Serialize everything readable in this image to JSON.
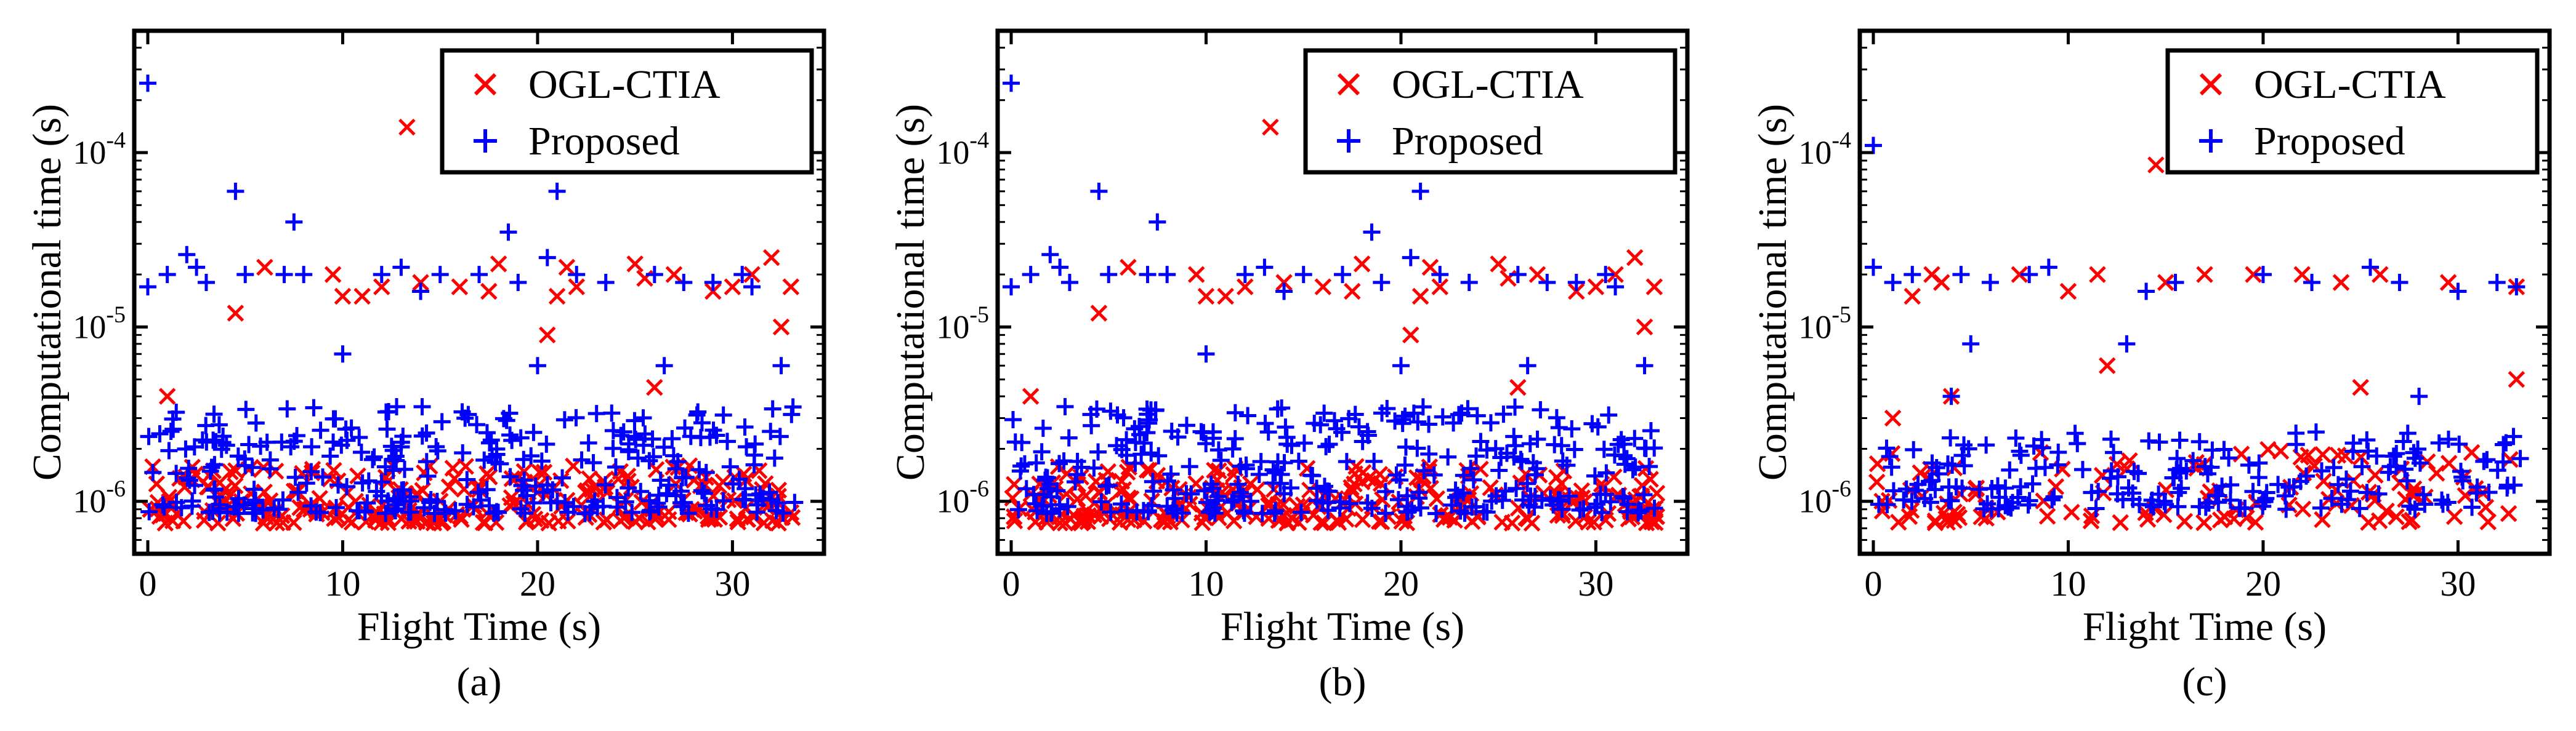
{
  "colors": {
    "ogl": "#ff0000",
    "proposed": "#0000ff",
    "axis": "#000000"
  },
  "chart_data": [
    {
      "type": "scatter",
      "panel_label": "(a)",
      "xlabel": "Flight Time (s)",
      "ylabel": "Computational time (s)",
      "xlim": [
        0,
        34
      ],
      "ylim": [
        5e-07,
        0.0005
      ],
      "yscale": "log",
      "xticks": [
        "0",
        "10",
        "20",
        "30"
      ],
      "yticks": [
        "10-6",
        "10-5",
        "10-4"
      ],
      "legend": {
        "placement": "top-right",
        "entries": [
          "OGL-CTIA",
          "Proposed"
        ]
      },
      "series": [
        {
          "name": "OGL-CTIA",
          "marker": "x",
          "outliers": [
            [
              13.3,
              0.00014
            ],
            [
              32,
              2.5e-05
            ],
            [
              18,
              2.3e-05
            ],
            [
              21.5,
              2.2e-05
            ],
            [
              25,
              2.3e-05
            ],
            [
              6,
              2.2e-05
            ],
            [
              9.5,
              2e-05
            ],
            [
              10,
              1.5e-05
            ],
            [
              11,
              1.5e-05
            ],
            [
              14,
              1.8e-05
            ],
            [
              4.5,
              1.2e-05
            ],
            [
              16,
              1.7e-05
            ],
            [
              17.5,
              1.6e-05
            ],
            [
              20.5,
              9e-06
            ],
            [
              30,
              1.7e-05
            ],
            [
              32.5,
              1e-05
            ],
            [
              33,
              1.7e-05
            ],
            [
              25.5,
              1.9e-05
            ],
            [
              21,
              1.5e-05
            ],
            [
              22,
              1.7e-05
            ],
            [
              12,
              1.7e-05
            ],
            [
              27,
              2e-05
            ],
            [
              29,
              1.6e-05
            ],
            [
              31,
              2e-05
            ],
            [
              1,
              4e-06
            ],
            [
              26,
              4.5e-06
            ]
          ],
          "band": {
            "low": 7.5e-07,
            "high": 1.6e-06,
            "density": 260
          }
        },
        {
          "name": "Proposed",
          "marker": "+",
          "outliers": [
            [
              0,
              0.00025
            ],
            [
              4.5,
              6e-05
            ],
            [
              7.5,
              4e-05
            ],
            [
              18.5,
              3.5e-05
            ],
            [
              21,
              6e-05
            ],
            [
              2,
              2.6e-05
            ],
            [
              0,
              1.7e-05
            ],
            [
              1,
              2e-05
            ],
            [
              2.5,
              2.2e-05
            ],
            [
              3,
              1.8e-05
            ],
            [
              5,
              2e-05
            ],
            [
              7,
              2e-05
            ],
            [
              8,
              2e-05
            ],
            [
              12,
              2e-05
            ],
            [
              13,
              2.2e-05
            ],
            [
              14,
              1.6e-05
            ],
            [
              15,
              2e-05
            ],
            [
              17,
              2e-05
            ],
            [
              19,
              1.8e-05
            ],
            [
              20.5,
              2.5e-05
            ],
            [
              22,
              2e-05
            ],
            [
              23.5,
              1.8e-05
            ],
            [
              26,
              2e-05
            ],
            [
              27.5,
              1.8e-05
            ],
            [
              29,
              1.8e-05
            ],
            [
              30.5,
              2e-05
            ],
            [
              31,
              1.7e-05
            ],
            [
              10,
              7e-06
            ],
            [
              20,
              6e-06
            ],
            [
              26.5,
              6e-06
            ],
            [
              32.5,
              6e-06
            ]
          ],
          "band": {
            "low": 8.5e-07,
            "high": 3.5e-06,
            "density": 320
          }
        }
      ]
    },
    {
      "type": "scatter",
      "panel_label": "(b)",
      "xlabel": "Flight Time (s)",
      "ylabel": "Computational time (s)",
      "xlim": [
        0,
        34
      ],
      "ylim": [
        5e-07,
        0.0005
      ],
      "yscale": "log",
      "xticks": [
        "0",
        "10",
        "20",
        "30"
      ],
      "yticks": [
        "10-6",
        "10-5",
        "10-4"
      ],
      "legend": {
        "placement": "top-right",
        "entries": [
          "OGL-CTIA",
          "Proposed"
        ]
      },
      "series": [
        {
          "name": "OGL-CTIA",
          "marker": "x",
          "outliers": [
            [
              13.3,
              0.00014
            ],
            [
              32,
              2.5e-05
            ],
            [
              18,
              2.3e-05
            ],
            [
              21.5,
              2.2e-05
            ],
            [
              25,
              2.3e-05
            ],
            [
              6,
              2.2e-05
            ],
            [
              9.5,
              2e-05
            ],
            [
              10,
              1.5e-05
            ],
            [
              11,
              1.5e-05
            ],
            [
              14,
              1.8e-05
            ],
            [
              4.5,
              1.2e-05
            ],
            [
              16,
              1.7e-05
            ],
            [
              17.5,
              1.6e-05
            ],
            [
              20.5,
              9e-06
            ],
            [
              30,
              1.7e-05
            ],
            [
              32.5,
              1e-05
            ],
            [
              33,
              1.7e-05
            ],
            [
              25.5,
              1.9e-05
            ],
            [
              21,
              1.5e-05
            ],
            [
              22,
              1.7e-05
            ],
            [
              12,
              1.7e-05
            ],
            [
              27,
              2e-05
            ],
            [
              29,
              1.6e-05
            ],
            [
              31,
              2e-05
            ],
            [
              1,
              4e-06
            ],
            [
              26,
              4.5e-06
            ]
          ],
          "band": {
            "low": 7.5e-07,
            "high": 1.6e-06,
            "density": 260
          }
        },
        {
          "name": "Proposed",
          "marker": "+",
          "outliers": [
            [
              0,
              0.00025
            ],
            [
              4.5,
              6e-05
            ],
            [
              7.5,
              4e-05
            ],
            [
              18.5,
              3.5e-05
            ],
            [
              21,
              6e-05
            ],
            [
              2,
              2.6e-05
            ],
            [
              0,
              1.7e-05
            ],
            [
              1,
              2e-05
            ],
            [
              2.5,
              2.2e-05
            ],
            [
              3,
              1.8e-05
            ],
            [
              5,
              2e-05
            ],
            [
              7,
              2e-05
            ],
            [
              8,
              2e-05
            ],
            [
              12,
              2e-05
            ],
            [
              13,
              2.2e-05
            ],
            [
              14,
              1.6e-05
            ],
            [
              15,
              2e-05
            ],
            [
              17,
              2e-05
            ],
            [
              19,
              1.8e-05
            ],
            [
              20.5,
              2.5e-05
            ],
            [
              22,
              2e-05
            ],
            [
              23.5,
              1.8e-05
            ],
            [
              26,
              2e-05
            ],
            [
              27.5,
              1.8e-05
            ],
            [
              29,
              1.8e-05
            ],
            [
              30.5,
              2e-05
            ],
            [
              31,
              1.7e-05
            ],
            [
              10,
              7e-06
            ],
            [
              20,
              6e-06
            ],
            [
              26.5,
              6e-06
            ],
            [
              32.5,
              6e-06
            ]
          ],
          "band": {
            "low": 8.5e-07,
            "high": 3.5e-06,
            "density": 320
          }
        }
      ]
    },
    {
      "type": "scatter",
      "panel_label": "(c)",
      "xlabel": "Flight Time (s)",
      "ylabel": "Computational time (s)",
      "xlim": [
        0,
        34
      ],
      "ylim": [
        5e-07,
        0.0005
      ],
      "yscale": "log",
      "xticks": [
        "0",
        "10",
        "20",
        "30"
      ],
      "yticks": [
        "10-6",
        "10-5",
        "10-4"
      ],
      "legend": {
        "placement": "top-right",
        "entries": [
          "OGL-CTIA",
          "Proposed"
        ]
      },
      "series": [
        {
          "name": "OGL-CTIA",
          "marker": "x",
          "outliers": [
            [
              14.5,
              8.5e-05
            ],
            [
              3,
              2e-05
            ],
            [
              3.5,
              1.8e-05
            ],
            [
              7.5,
              2e-05
            ],
            [
              11.5,
              2e-05
            ],
            [
              15,
              1.8e-05
            ],
            [
              17,
              2e-05
            ],
            [
              19.5,
              2e-05
            ],
            [
              22,
              2e-05
            ],
            [
              24,
              1.8e-05
            ],
            [
              26,
              2e-05
            ],
            [
              29.5,
              1.8e-05
            ],
            [
              33,
              1.7e-05
            ],
            [
              2,
              1.5e-05
            ],
            [
              10,
              1.6e-05
            ],
            [
              12,
              6e-06
            ],
            [
              25,
              4.5e-06
            ],
            [
              33,
              5e-06
            ],
            [
              1,
              3e-06
            ],
            [
              4,
              4e-06
            ]
          ],
          "band": {
            "low": 7.5e-07,
            "high": 2e-06,
            "density": 120
          }
        },
        {
          "name": "Proposed",
          "marker": "+",
          "outliers": [
            [
              0,
              0.00011
            ],
            [
              0,
              2.2e-05
            ],
            [
              1,
              1.8e-05
            ],
            [
              2,
              2e-05
            ],
            [
              4.5,
              2e-05
            ],
            [
              6,
              1.8e-05
            ],
            [
              8,
              2e-05
            ],
            [
              9,
              2.2e-05
            ],
            [
              14,
              1.6e-05
            ],
            [
              15.5,
              1.8e-05
            ],
            [
              20,
              2e-05
            ],
            [
              22.5,
              1.8e-05
            ],
            [
              25.5,
              2.2e-05
            ],
            [
              27,
              1.8e-05
            ],
            [
              30,
              1.6e-05
            ],
            [
              32,
              1.8e-05
            ],
            [
              33,
              1.7e-05
            ],
            [
              5,
              8e-06
            ],
            [
              13,
              8e-06
            ],
            [
              4,
              4e-06
            ],
            [
              28,
              4e-06
            ]
          ],
          "band": {
            "low": 9e-07,
            "high": 2.5e-06,
            "density": 200
          }
        }
      ]
    }
  ]
}
